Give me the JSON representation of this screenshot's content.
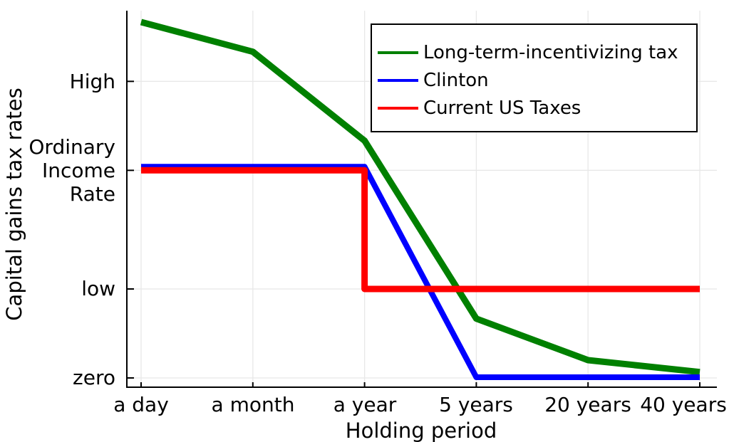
{
  "chart_data": {
    "type": "line",
    "title": "",
    "xlabel": "Holding period",
    "ylabel": "Capital gains tax rates",
    "categories": [
      "a day",
      "a month",
      "a year",
      "5 years",
      "20 years",
      "40 years"
    ],
    "y_ticks": [
      {
        "label": [
          "High"
        ],
        "value": 0.5
      },
      {
        "label": [
          "Ordinary",
          "Income",
          "Rate"
        ],
        "value": 0.35
      },
      {
        "label": [
          "low"
        ],
        "value": 0.15
      },
      {
        "label": [
          "zero"
        ],
        "value": 0
      }
    ],
    "ylim": [
      -0.016,
      0.62
    ],
    "grid": true,
    "legend_position": "top-right",
    "series": [
      {
        "name": "Long-term-incentivizing tax",
        "color": "#008000",
        "values": [
          0.6,
          0.55,
          0.4,
          0.1,
          0.03,
          0.01
        ]
      },
      {
        "name": "Clinton",
        "color": "#0000ff",
        "values": [
          0.35,
          0.35,
          0.35,
          0,
          0,
          0
        ]
      },
      {
        "name": "Current US Taxes",
        "color": "#ff0000",
        "values": [
          0.35,
          0.35,
          0.15,
          0.15,
          0.15,
          0.15
        ],
        "step": "before"
      }
    ]
  }
}
